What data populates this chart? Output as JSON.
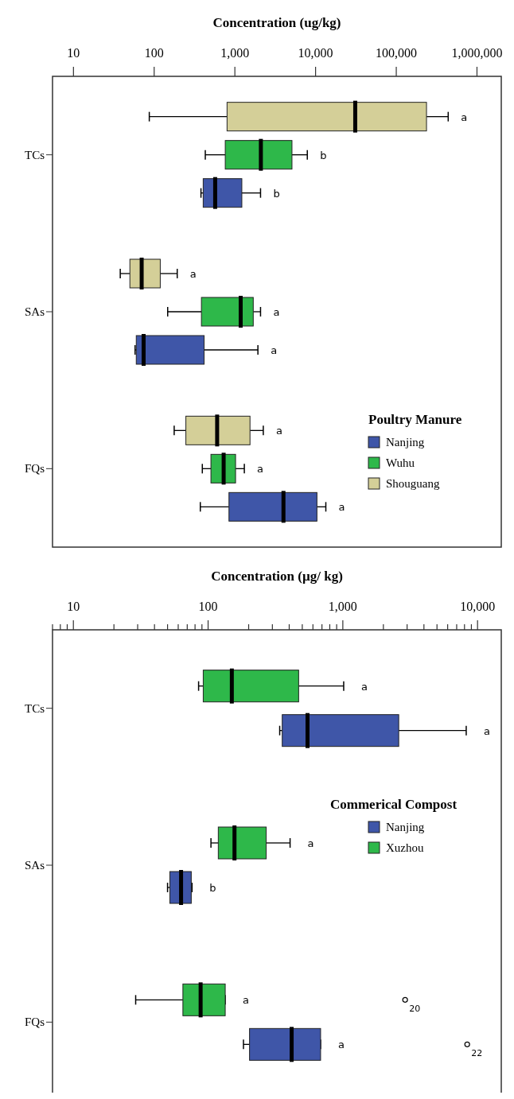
{
  "chart_data": [
    {
      "type": "box",
      "orientation": "horizontal",
      "xlabel": "Concentration (ug/kg)",
      "log": "x",
      "xlim": [
        5.5,
        2000000
      ],
      "xticks": [
        {
          "value": 10,
          "label": "10"
        },
        {
          "value": 100,
          "label": "100"
        },
        {
          "value": 1000,
          "label": "1,000"
        },
        {
          "value": 10000,
          "label": "10,000"
        },
        {
          "value": 100000,
          "label": "100,000"
        },
        {
          "value": 1000000,
          "label": "1,000,000"
        }
      ],
      "categories": [
        "TCs",
        "SAs",
        "FQs"
      ],
      "legend_title": "Poultry Manure",
      "legend": "bottom right",
      "series": [
        {
          "name": "Nanjing",
          "color": "#3f56a8",
          "value_labels": [
            "b",
            "a",
            "a"
          ],
          "boxes": [
            {
              "low": 380,
              "q1": 405,
              "median": 570,
              "q3": 1220,
              "high": 2080
            },
            {
              "low": 58,
              "q1": 60,
              "median": 74,
              "q3": 416,
              "high": 1930
            },
            {
              "low": 373,
              "q1": 845,
              "median": 4000,
              "q3": 10400,
              "high": 13400
            }
          ]
        },
        {
          "name": "Wuhu",
          "color": "#2eb84a",
          "value_labels": [
            "b",
            "a",
            "a"
          ],
          "boxes": [
            {
              "low": 430,
              "q1": 760,
              "median": 2100,
              "q3": 5100,
              "high": 7900
            },
            {
              "low": 147,
              "q1": 385,
              "median": 1180,
              "q3": 1690,
              "high": 2080
            },
            {
              "low": 395,
              "q1": 505,
              "median": 726,
              "q3": 1020,
              "high": 1310
            }
          ]
        },
        {
          "name": "Shouguang",
          "color": "#d4cf98",
          "value_labels": [
            "a",
            "a",
            "a"
          ],
          "boxes": [
            {
              "low": 87,
              "q1": 800,
              "median": 31000,
              "q3": 237000,
              "high": 440000
            },
            {
              "low": 38,
              "q1": 50,
              "median": 70,
              "q3": 119,
              "high": 193
            },
            {
              "low": 177,
              "q1": 247,
              "median": 603,
              "q3": 1540,
              "high": 2250
            }
          ]
        }
      ]
    },
    {
      "type": "box",
      "orientation": "horizontal",
      "xlabel": "Concentration (µg/ kg)",
      "log": "x",
      "xlim": [
        7,
        15000
      ],
      "xticks": [
        {
          "value": 7,
          "label": null
        },
        {
          "value": 8,
          "label": null
        },
        {
          "value": 9,
          "label": null
        },
        {
          "value": 10,
          "label": "10"
        },
        {
          "value": 20,
          "label": null
        },
        {
          "value": 30,
          "label": null
        },
        {
          "value": 40,
          "label": null
        },
        {
          "value": 50,
          "label": null
        },
        {
          "value": 60,
          "label": null
        },
        {
          "value": 70,
          "label": null
        },
        {
          "value": 80,
          "label": null
        },
        {
          "value": 90,
          "label": null
        },
        {
          "value": 100,
          "label": "100"
        },
        {
          "value": 200,
          "label": null
        },
        {
          "value": 300,
          "label": null
        },
        {
          "value": 400,
          "label": null
        },
        {
          "value": 500,
          "label": null
        },
        {
          "value": 600,
          "label": null
        },
        {
          "value": 700,
          "label": null
        },
        {
          "value": 800,
          "label": null
        },
        {
          "value": 900,
          "label": null
        },
        {
          "value": 1000,
          "label": "1,000"
        },
        {
          "value": 2000,
          "label": null
        },
        {
          "value": 3000,
          "label": null
        },
        {
          "value": 4000,
          "label": null
        },
        {
          "value": 5000,
          "label": null
        },
        {
          "value": 6000,
          "label": null
        },
        {
          "value": 7000,
          "label": null
        },
        {
          "value": 8000,
          "label": null
        },
        {
          "value": 9000,
          "label": null
        },
        {
          "value": 10000,
          "label": "10,000"
        }
      ],
      "categories": [
        "TCs",
        "SAs",
        "FQs"
      ],
      "legend_title": "Commerical Compost",
      "legend": "right",
      "annotations": [
        "20",
        "22"
      ],
      "series": [
        {
          "name": "Nanjing",
          "color": "#3f56a8",
          "value_labels": [
            "a",
            "b",
            "a"
          ],
          "boxes": [
            {
              "low": 340,
              "q1": 355,
              "median": 547,
              "q3": 2600,
              "high": 8240
            },
            {
              "low": 50,
              "q1": 52,
              "median": 63,
              "q3": 75,
              "high": 76
            },
            {
              "low": 183,
              "q1": 203,
              "median": 417,
              "q3": 684,
              "high": 684,
              "outliers": [
                8380
              ]
            }
          ]
        },
        {
          "name": "Xuzhou",
          "color": "#2eb84a",
          "value_labels": [
            "a",
            "a",
            "a"
          ],
          "boxes": [
            {
              "low": 85,
              "q1": 92,
              "median": 150,
              "q3": 470,
              "high": 1015
            },
            {
              "low": 105,
              "q1": 119,
              "median": 157,
              "q3": 270,
              "high": 406
            },
            {
              "low": 29,
              "q1": 65,
              "median": 88,
              "q3": 134,
              "high": 134,
              "outliers": [
                2900
              ]
            }
          ]
        }
      ]
    }
  ]
}
